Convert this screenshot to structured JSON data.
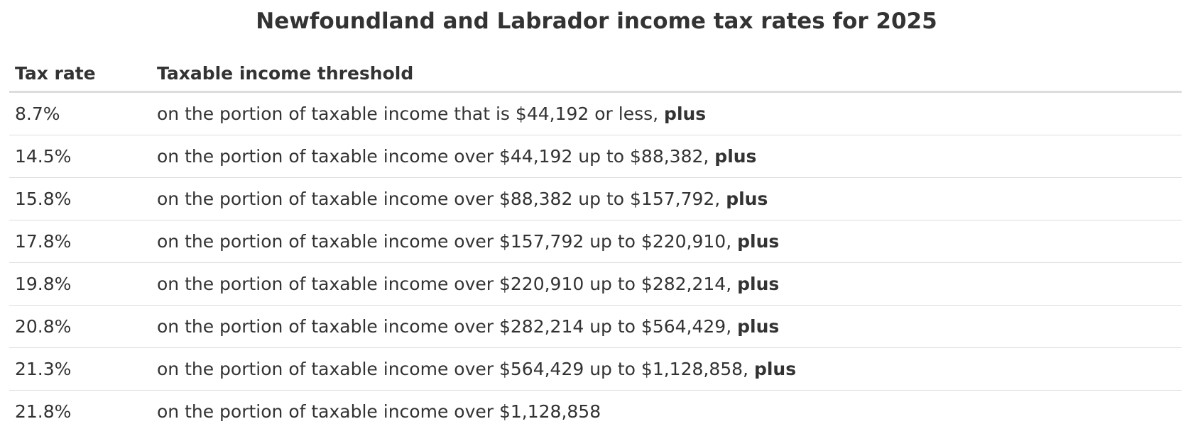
{
  "title": "Newfoundland and Labrador income tax rates for 2025",
  "table": {
    "headers": [
      "Tax rate",
      "Taxable income threshold"
    ],
    "rows": [
      {
        "rate": "8.7%",
        "threshold": "on the portion of taxable income that is $44,192 or less,",
        "suffix": "plus"
      },
      {
        "rate": "14.5%",
        "threshold": "on the portion of taxable income over $44,192 up to $88,382,",
        "suffix": "plus"
      },
      {
        "rate": "15.8%",
        "threshold": "on the portion of taxable income over $88,382 up to $157,792,",
        "suffix": "plus"
      },
      {
        "rate": "17.8%",
        "threshold": "on the portion of taxable income over $157,792 up to $220,910,",
        "suffix": "plus"
      },
      {
        "rate": "19.8%",
        "threshold": "on the portion of taxable income over $220,910 up to $282,214,",
        "suffix": "plus"
      },
      {
        "rate": "20.8%",
        "threshold": "on the portion of taxable income over $282,214 up to $564,429,",
        "suffix": "plus"
      },
      {
        "rate": "21.3%",
        "threshold": "on the portion of taxable income over $564,429 up to $1,128,858,",
        "suffix": "plus"
      },
      {
        "rate": "21.8%",
        "threshold": "on the portion of taxable income over $1,128,858"
      }
    ]
  }
}
